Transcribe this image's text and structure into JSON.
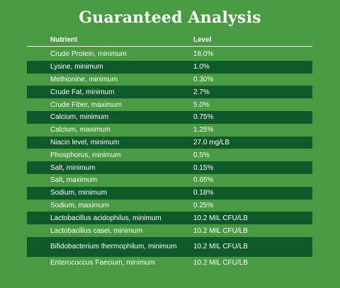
{
  "title": "Guaranteed Analysis",
  "columns": {
    "nutrient": "Nutrient",
    "level": "Level"
  },
  "rows": [
    {
      "nutrient": "Crude Protein, minimum",
      "level": "18.0%"
    },
    {
      "nutrient": "Lysine, minimum",
      "level": "1.0%"
    },
    {
      "nutrient": "Methionine, minimum",
      "level": "0.30%"
    },
    {
      "nutrient": "Crude Fat, minimum",
      "level": "2.7%"
    },
    {
      "nutrient": "Crude Fiber, maximum",
      "level": "5.0%"
    },
    {
      "nutrient": "Calcium, minimum",
      "level": "0.75%"
    },
    {
      "nutrient": "Calcium, maximum",
      "level": "1.25%"
    },
    {
      "nutrient": "Niacin level, minimum",
      "level": "27.0 mg/LB"
    },
    {
      "nutrient": "Phosphorus, minimum",
      "level": "0.5%"
    },
    {
      "nutrient": "Salt, minimum",
      "level": "0.15%"
    },
    {
      "nutrient": "Salt, maximum",
      "level": "0.65%"
    },
    {
      "nutrient": "Sodium, minimum",
      "level": "0.18%"
    },
    {
      "nutrient": "Sodium, maximum",
      "level": "0.25%"
    },
    {
      "nutrient": "Lactobacillus acidophilus, minimum",
      "level": "10.2 MIL CFU/LB"
    },
    {
      "nutrient": "Lactobacillus casei, minimum",
      "level": "10.2 MIL CFU/LB"
    },
    {
      "nutrient": "Bifidobacterium thermophilum, minimum",
      "level": "10.2 MIL CFU/LB"
    },
    {
      "nutrient": "Enterococcus Faecium, minimum",
      "level": "10.2 MIL CFU/LB"
    }
  ],
  "colors": {
    "background": "#4a9a44",
    "stripe": "#0e5a2a",
    "text": "#ffffff"
  }
}
